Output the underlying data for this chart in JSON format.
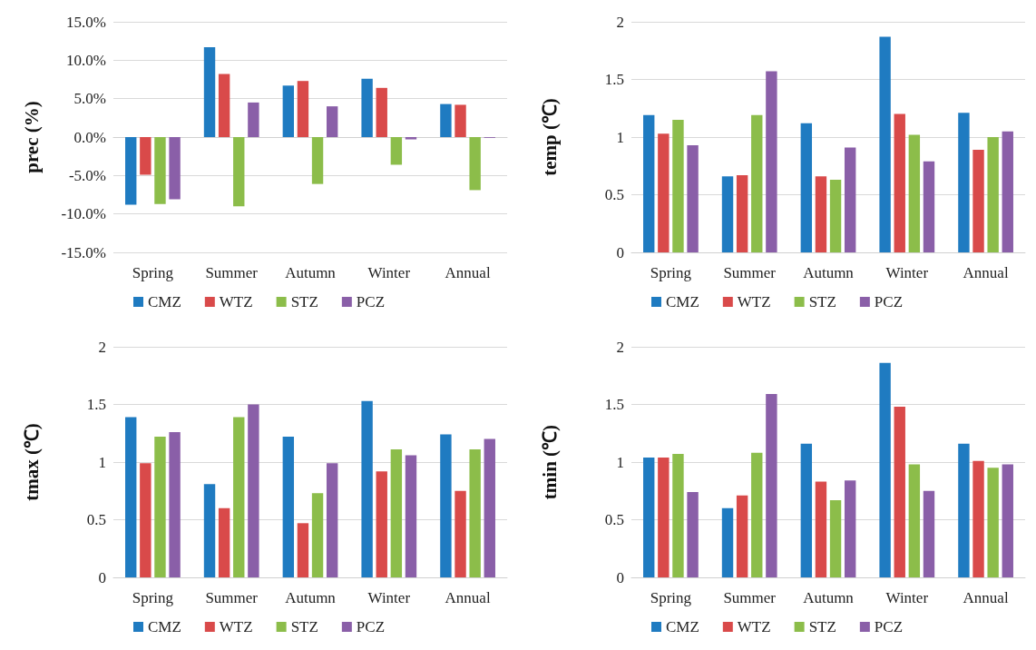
{
  "chart_data": [
    {
      "type": "bar",
      "ylabel": "prec (%)",
      "categories": [
        "Spring",
        "Summer",
        "Autumn",
        "Winter",
        "Annual"
      ],
      "series": [
        {
          "name": "CMZ",
          "color": "#1f7bc1",
          "values": [
            -8.8,
            11.7,
            6.7,
            7.6,
            4.3
          ]
        },
        {
          "name": "WTZ",
          "color": "#d94a4a",
          "values": [
            -4.9,
            8.2,
            7.3,
            6.4,
            4.2
          ]
        },
        {
          "name": "STZ",
          "color": "#8cbd4a",
          "values": [
            -8.7,
            -9.0,
            -6.1,
            -3.6,
            -6.9
          ]
        },
        {
          "name": "PCZ",
          "color": "#8a5fa8",
          "values": [
            -8.1,
            4.5,
            4.0,
            -0.3,
            -0.1
          ]
        }
      ],
      "ylim": [
        -15,
        15
      ],
      "yticks": [
        {
          "value": -15,
          "label": "-15.0%"
        },
        {
          "value": -10,
          "label": "-10.0%"
        },
        {
          "value": -5,
          "label": "-5.0%"
        },
        {
          "value": 0,
          "label": "0.0%"
        },
        {
          "value": 5,
          "label": "5.0%"
        },
        {
          "value": 10,
          "label": "10.0%"
        },
        {
          "value": 15,
          "label": "15.0%"
        }
      ],
      "grid": "y",
      "legend": "bottom"
    },
    {
      "type": "bar",
      "ylabel": "temp (℃)",
      "categories": [
        "Spring",
        "Summer",
        "Autumn",
        "Winter",
        "Annual"
      ],
      "series": [
        {
          "name": "CMZ",
          "color": "#1f7bc1",
          "values": [
            1.19,
            0.66,
            1.12,
            1.87,
            1.21
          ]
        },
        {
          "name": "WTZ",
          "color": "#d94a4a",
          "values": [
            1.03,
            0.67,
            0.66,
            1.2,
            0.89
          ]
        },
        {
          "name": "STZ",
          "color": "#8cbd4a",
          "values": [
            1.15,
            1.19,
            0.63,
            1.02,
            1.0
          ]
        },
        {
          "name": "PCZ",
          "color": "#8a5fa8",
          "values": [
            0.93,
            1.57,
            0.91,
            0.79,
            1.05
          ]
        }
      ],
      "ylim": [
        0,
        2
      ],
      "yticks": [
        0,
        0.5,
        1,
        1.5,
        2
      ],
      "grid": "y",
      "legend": "bottom"
    },
    {
      "type": "bar",
      "ylabel": "tmax (℃)",
      "categories": [
        "Spring",
        "Summer",
        "Autumn",
        "Winter",
        "Annual"
      ],
      "series": [
        {
          "name": "CMZ",
          "color": "#1f7bc1",
          "values": [
            1.39,
            0.81,
            1.22,
            1.53,
            1.24
          ]
        },
        {
          "name": "WTZ",
          "color": "#d94a4a",
          "values": [
            0.99,
            0.6,
            0.47,
            0.92,
            0.75
          ]
        },
        {
          "name": "STZ",
          "color": "#8cbd4a",
          "values": [
            1.22,
            1.39,
            0.73,
            1.11,
            1.11
          ]
        },
        {
          "name": "PCZ",
          "color": "#8a5fa8",
          "values": [
            1.26,
            1.5,
            0.99,
            1.06,
            1.2
          ]
        }
      ],
      "ylim": [
        0,
        2
      ],
      "yticks": [
        0,
        0.5,
        1,
        1.5,
        2
      ],
      "grid": "y",
      "legend": "bottom"
    },
    {
      "type": "bar",
      "ylabel": "tmin (℃)",
      "categories": [
        "Spring",
        "Summer",
        "Autumn",
        "Winter",
        "Annual"
      ],
      "series": [
        {
          "name": "CMZ",
          "color": "#1f7bc1",
          "values": [
            1.04,
            0.6,
            1.16,
            1.86,
            1.16
          ]
        },
        {
          "name": "WTZ",
          "color": "#d94a4a",
          "values": [
            1.04,
            0.71,
            0.83,
            1.48,
            1.01
          ]
        },
        {
          "name": "STZ",
          "color": "#8cbd4a",
          "values": [
            1.07,
            1.08,
            0.67,
            0.98,
            0.95
          ]
        },
        {
          "name": "PCZ",
          "color": "#8a5fa8",
          "values": [
            0.74,
            1.59,
            0.84,
            0.75,
            0.98
          ]
        }
      ],
      "ylim": [
        0,
        2
      ],
      "yticks": [
        0,
        0.5,
        1,
        1.5,
        2
      ],
      "grid": "y",
      "legend": "bottom"
    }
  ]
}
